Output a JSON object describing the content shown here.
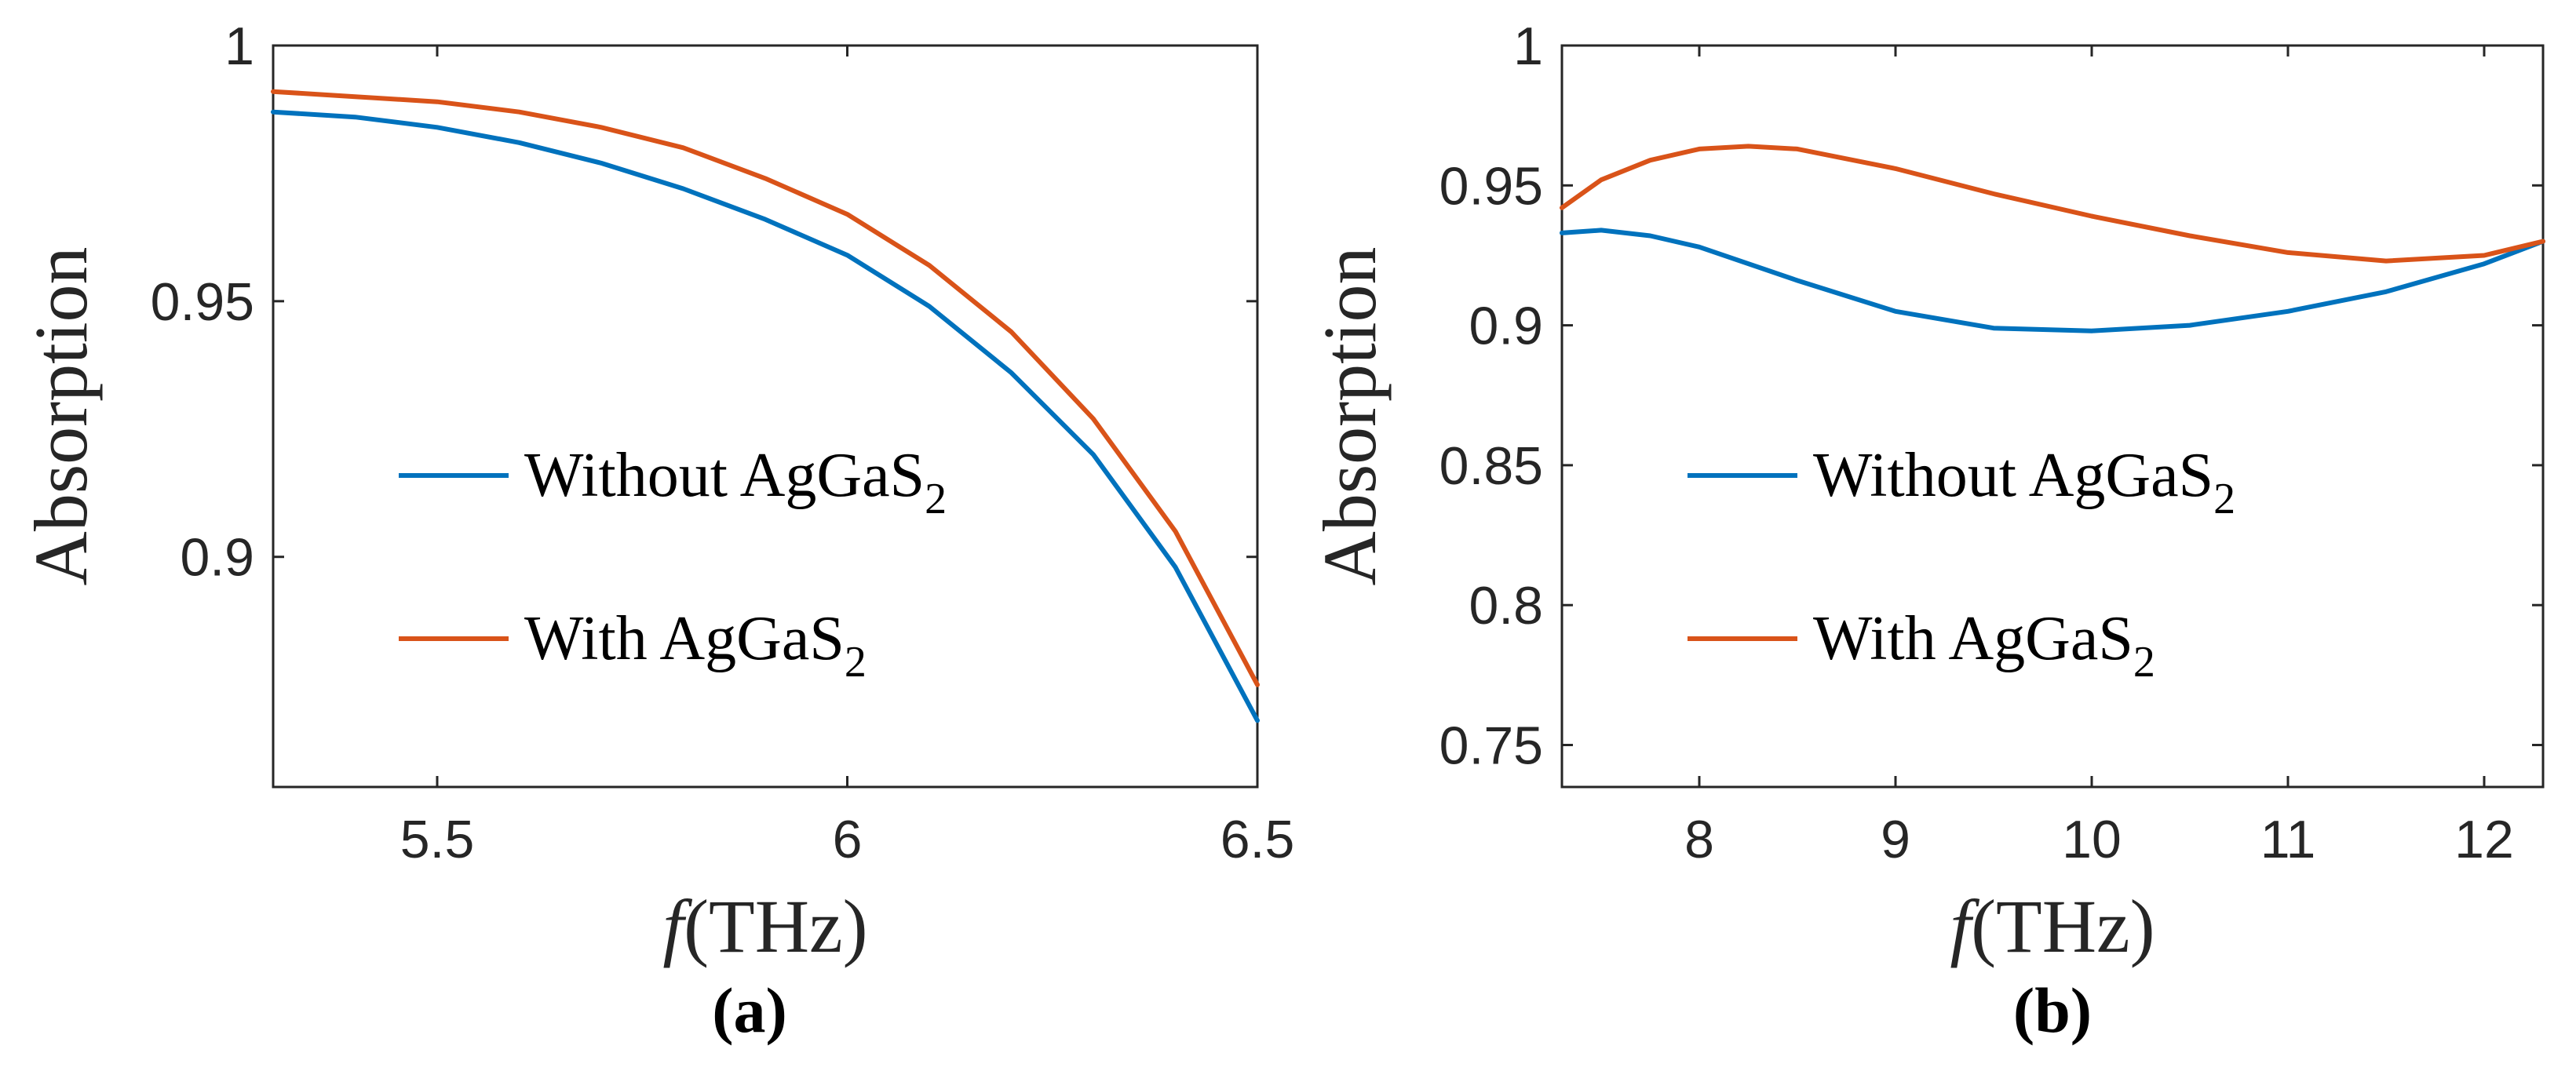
{
  "chart_data": [
    {
      "type": "line",
      "panel_label": "(a)",
      "xlabel_italic": "f",
      "xlabel_rest": "(THz)",
      "ylabel": "Absorption",
      "xlim": [
        5.3,
        6.5
      ],
      "ylim": [
        0.855,
        1.0
      ],
      "xticks": [
        5.5,
        6,
        6.5
      ],
      "xtick_labels": [
        "5.5",
        "6",
        "6.5"
      ],
      "yticks": [
        0.9,
        0.95,
        1.0
      ],
      "ytick_labels": [
        "0.9",
        "0.95",
        "1"
      ],
      "legend": {
        "location": "center-left"
      },
      "series": [
        {
          "name": "Without AgGaS",
          "subscript": "2",
          "color": "#0072BD",
          "x": [
            5.3,
            5.4,
            5.5,
            5.6,
            5.7,
            5.8,
            5.9,
            6.0,
            6.1,
            6.2,
            6.3,
            6.4,
            6.5
          ],
          "y": [
            0.987,
            0.986,
            0.984,
            0.981,
            0.977,
            0.972,
            0.966,
            0.959,
            0.949,
            0.936,
            0.92,
            0.898,
            0.868
          ]
        },
        {
          "name": "With AgGaS",
          "subscript": "2",
          "color": "#D95319",
          "x": [
            5.3,
            5.4,
            5.5,
            5.6,
            5.7,
            5.8,
            5.9,
            6.0,
            6.1,
            6.2,
            6.3,
            6.4,
            6.5
          ],
          "y": [
            0.991,
            0.99,
            0.989,
            0.987,
            0.984,
            0.98,
            0.974,
            0.967,
            0.957,
            0.944,
            0.927,
            0.905,
            0.875
          ]
        }
      ]
    },
    {
      "type": "line",
      "panel_label": "(b)",
      "xlabel_italic": "f",
      "xlabel_rest": "(THz)",
      "ylabel": "Absorption",
      "xlim": [
        7.3,
        12.3
      ],
      "ylim": [
        0.735,
        1.0
      ],
      "xticks": [
        8,
        9,
        10,
        11,
        12
      ],
      "xtick_labels": [
        "8",
        "9",
        "10",
        "11",
        "12"
      ],
      "yticks": [
        0.75,
        0.8,
        0.85,
        0.9,
        0.95,
        1.0
      ],
      "ytick_labels": [
        "0.75",
        "0.8",
        "0.85",
        "0.9",
        "0.95",
        "1"
      ],
      "legend": {
        "location": "center-left"
      },
      "series": [
        {
          "name": "Without AgGaS",
          "subscript": "2",
          "color": "#0072BD",
          "x": [
            7.3,
            7.5,
            7.75,
            8.0,
            8.5,
            9.0,
            9.5,
            10.0,
            10.5,
            11.0,
            11.5,
            12.0,
            12.3
          ],
          "y": [
            0.933,
            0.934,
            0.932,
            0.928,
            0.916,
            0.905,
            0.899,
            0.898,
            0.9,
            0.905,
            0.912,
            0.922,
            0.93
          ]
        },
        {
          "name": "With AgGaS",
          "subscript": "2",
          "color": "#D95319",
          "x": [
            7.3,
            7.5,
            7.75,
            8.0,
            8.25,
            8.5,
            9.0,
            9.5,
            10.0,
            10.5,
            11.0,
            11.5,
            12.0,
            12.3
          ],
          "y": [
            0.942,
            0.952,
            0.959,
            0.963,
            0.964,
            0.963,
            0.956,
            0.947,
            0.939,
            0.932,
            0.926,
            0.923,
            0.925,
            0.93
          ]
        }
      ]
    }
  ]
}
